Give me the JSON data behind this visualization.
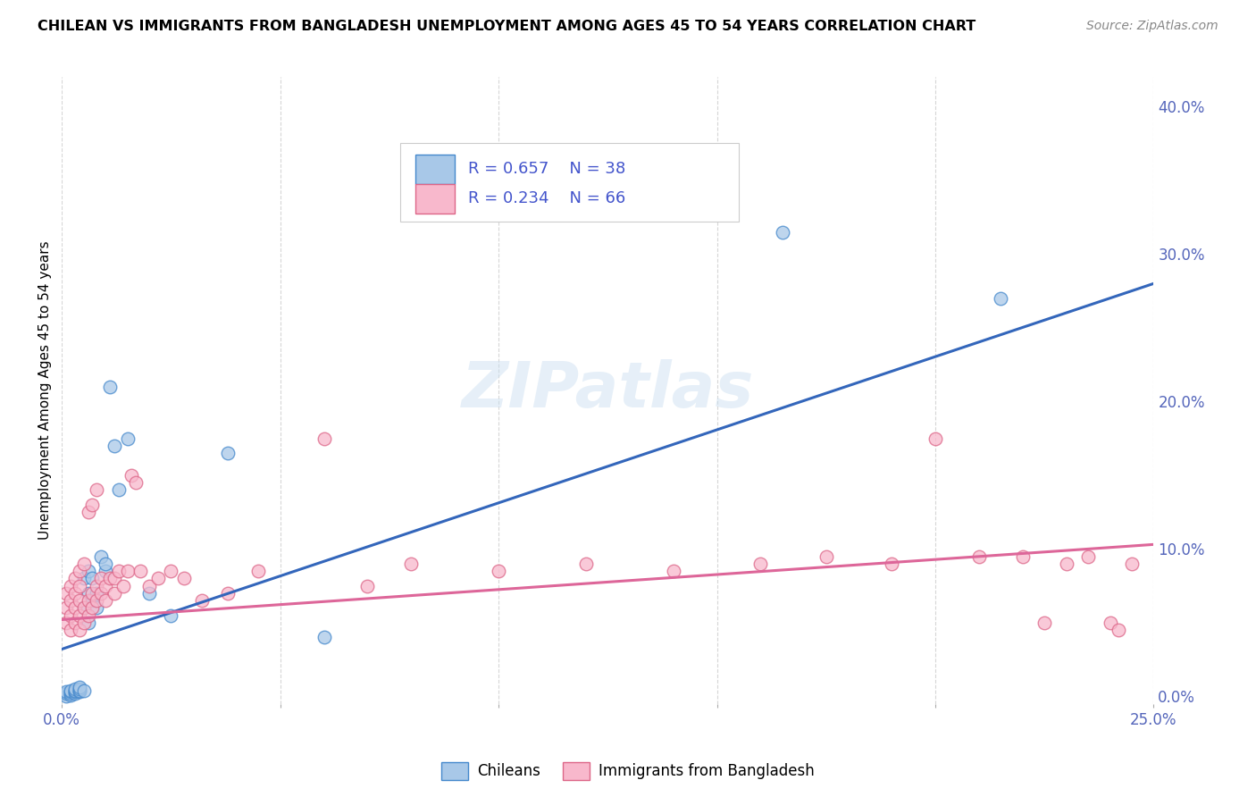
{
  "title": "CHILEAN VS IMMIGRANTS FROM BANGLADESH UNEMPLOYMENT AMONG AGES 45 TO 54 YEARS CORRELATION CHART",
  "source": "Source: ZipAtlas.com",
  "ylabel": "Unemployment Among Ages 45 to 54 years",
  "xlim": [
    0.0,
    0.25
  ],
  "ylim": [
    -0.005,
    0.42
  ],
  "yticks_right": [
    0.0,
    0.1,
    0.2,
    0.3,
    0.4
  ],
  "ytick_right_labels": [
    "0.0%",
    "10.0%",
    "20.0%",
    "30.0%",
    "40.0%"
  ],
  "xtick_labels_show": [
    "0.0%",
    "25.0%"
  ],
  "blue_color": "#a8c8e8",
  "blue_edge_color": "#4488cc",
  "pink_color": "#f8b8cc",
  "pink_edge_color": "#dd6688",
  "blue_line_color": "#3366bb",
  "pink_line_color": "#dd6699",
  "watermark": "ZIPatlas",
  "blue_line_x0": 0.0,
  "blue_line_y0": 0.032,
  "blue_line_x1": 0.25,
  "blue_line_y1": 0.28,
  "pink_line_x0": 0.0,
  "pink_line_y0": 0.052,
  "pink_line_x1": 0.25,
  "pink_line_y1": 0.103,
  "blue_x": [
    0.001,
    0.001,
    0.001,
    0.002,
    0.002,
    0.002,
    0.002,
    0.003,
    0.003,
    0.003,
    0.003,
    0.004,
    0.004,
    0.004,
    0.004,
    0.005,
    0.005,
    0.005,
    0.006,
    0.006,
    0.006,
    0.007,
    0.007,
    0.008,
    0.008,
    0.009,
    0.01,
    0.01,
    0.011,
    0.012,
    0.013,
    0.015,
    0.02,
    0.025,
    0.038,
    0.06,
    0.165,
    0.215
  ],
  "blue_y": [
    0.0,
    0.002,
    0.003,
    0.001,
    0.002,
    0.003,
    0.004,
    0.002,
    0.003,
    0.004,
    0.005,
    0.003,
    0.004,
    0.005,
    0.006,
    0.004,
    0.06,
    0.08,
    0.05,
    0.07,
    0.085,
    0.065,
    0.08,
    0.06,
    0.07,
    0.095,
    0.085,
    0.09,
    0.21,
    0.17,
    0.14,
    0.175,
    0.07,
    0.055,
    0.165,
    0.04,
    0.315,
    0.27
  ],
  "pink_x": [
    0.001,
    0.001,
    0.001,
    0.002,
    0.002,
    0.002,
    0.002,
    0.003,
    0.003,
    0.003,
    0.003,
    0.004,
    0.004,
    0.004,
    0.004,
    0.004,
    0.005,
    0.005,
    0.005,
    0.006,
    0.006,
    0.006,
    0.007,
    0.007,
    0.007,
    0.008,
    0.008,
    0.008,
    0.009,
    0.009,
    0.01,
    0.01,
    0.011,
    0.012,
    0.012,
    0.013,
    0.014,
    0.015,
    0.016,
    0.017,
    0.018,
    0.02,
    0.022,
    0.025,
    0.028,
    0.032,
    0.038,
    0.045,
    0.06,
    0.07,
    0.08,
    0.1,
    0.12,
    0.14,
    0.16,
    0.175,
    0.19,
    0.2,
    0.21,
    0.22,
    0.225,
    0.23,
    0.235,
    0.24,
    0.242,
    0.245
  ],
  "pink_y": [
    0.05,
    0.06,
    0.07,
    0.045,
    0.055,
    0.065,
    0.075,
    0.05,
    0.06,
    0.07,
    0.08,
    0.045,
    0.055,
    0.065,
    0.075,
    0.085,
    0.05,
    0.06,
    0.09,
    0.055,
    0.065,
    0.125,
    0.06,
    0.07,
    0.13,
    0.065,
    0.075,
    0.14,
    0.07,
    0.08,
    0.065,
    0.075,
    0.08,
    0.07,
    0.08,
    0.085,
    0.075,
    0.085,
    0.15,
    0.145,
    0.085,
    0.075,
    0.08,
    0.085,
    0.08,
    0.065,
    0.07,
    0.085,
    0.175,
    0.075,
    0.09,
    0.085,
    0.09,
    0.085,
    0.09,
    0.095,
    0.09,
    0.175,
    0.095,
    0.095,
    0.05,
    0.09,
    0.095,
    0.05,
    0.045,
    0.09
  ]
}
